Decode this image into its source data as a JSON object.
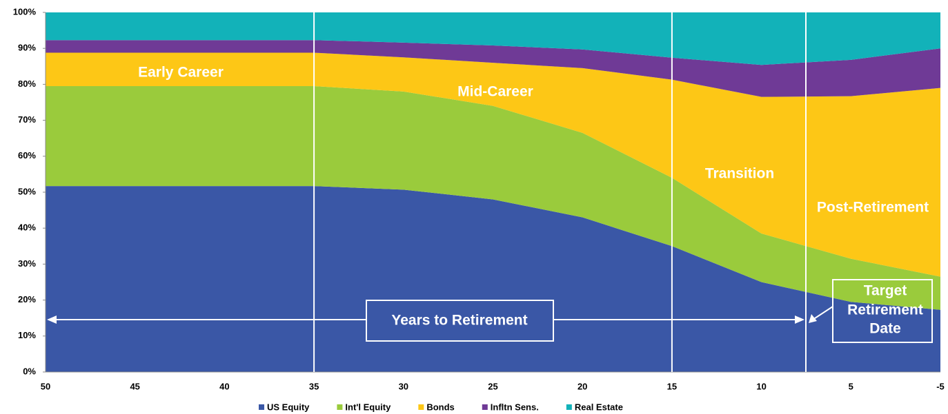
{
  "chart_data": {
    "type": "stacked_area",
    "categories": [
      "50",
      "45",
      "40",
      "35",
      "30",
      "25",
      "20",
      "15",
      "10",
      "5",
      "-5"
    ],
    "series": [
      {
        "name": "US Equity",
        "color": "#3a57a6",
        "values": [
          51.7,
          51.7,
          51.7,
          51.7,
          50.7,
          48,
          43,
          35,
          25,
          19.5,
          17.3
        ]
      },
      {
        "name": "Int'l Equity",
        "color": "#9acb3c",
        "values": [
          27.8,
          27.8,
          27.8,
          27.8,
          27.3,
          26,
          23.5,
          19,
          13.5,
          12,
          9.2
        ]
      },
      {
        "name": "Bonds",
        "color": "#fdc716",
        "values": [
          9.3,
          9.3,
          9.3,
          9.3,
          9.5,
          12,
          18,
          27.3,
          38,
          45.2,
          52.5
        ]
      },
      {
        "name": "Infltn Sens.",
        "color": "#6f3a96",
        "values": [
          3.5,
          3.5,
          3.5,
          3.5,
          4.1,
          4.8,
          5.2,
          6.1,
          8.9,
          10.1,
          11
        ]
      },
      {
        "name": "Real Estate",
        "color": "#12b2b9",
        "values": [
          7.7,
          7.7,
          7.7,
          7.7,
          8.4,
          9.2,
          10.3,
          12.6,
          14.6,
          13.2,
          10
        ]
      }
    ],
    "ylim": [
      0,
      100
    ],
    "yticks": [
      {
        "value": 0,
        "label": "0%"
      },
      {
        "value": 10,
        "label": "10%"
      },
      {
        "value": 20,
        "label": "20%"
      },
      {
        "value": 30,
        "label": "30%"
      },
      {
        "value": 40,
        "label": "40%"
      },
      {
        "value": 50,
        "label": "50%"
      },
      {
        "value": 60,
        "label": "60%"
      },
      {
        "value": 70,
        "label": "70%"
      },
      {
        "value": 80,
        "label": "80%"
      },
      {
        "value": 90,
        "label": "90%"
      },
      {
        "value": 100,
        "label": "100%"
      }
    ],
    "annotations": [
      "Early Career",
      "Mid-Career",
      "Transition",
      "Post-Retirement",
      "Years to Retirement",
      [
        "Target",
        "Retirement",
        "Date"
      ]
    ],
    "legend": "bottom"
  }
}
